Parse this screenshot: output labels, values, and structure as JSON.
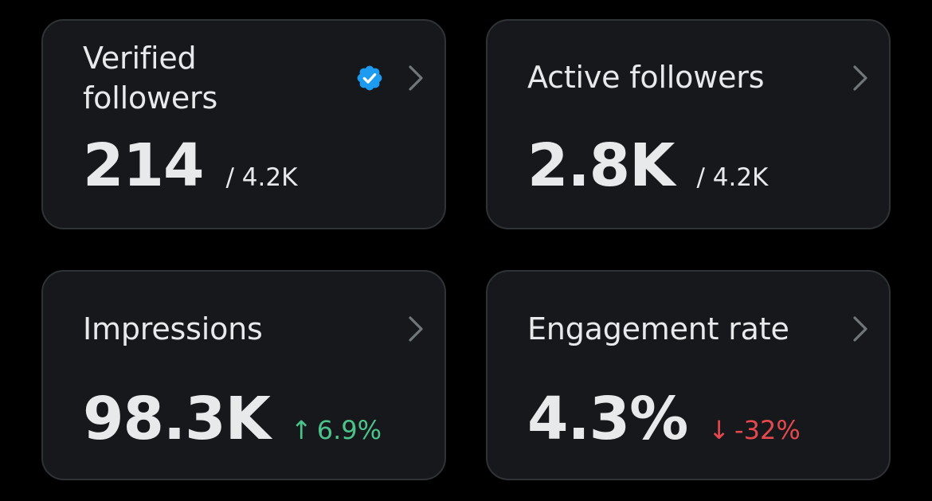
{
  "colors": {
    "background": "#000000",
    "card_background": "#16181c",
    "card_border": "#2f3336",
    "text_primary": "#e7e9ea",
    "chevron": "#71767b",
    "verified_badge": "#1d9bf0",
    "positive": "#4cc38a",
    "negative": "#e5484d"
  },
  "cards": [
    {
      "title": "Verified followers",
      "value": "214",
      "total": "/ 4.2K",
      "icon": "verified-badge-icon",
      "chevron_icon": "chevron-right-icon"
    },
    {
      "title": "Active followers",
      "value": "2.8K",
      "total": "/ 4.2K",
      "chevron_icon": "chevron-right-icon"
    },
    {
      "title": "Impressions",
      "value": "98.3K",
      "delta_arrow": "↑",
      "delta": "6.9%",
      "delta_direction": "up",
      "chevron_icon": "chevron-right-icon"
    },
    {
      "title": "Engagement rate",
      "value": "4.3%",
      "delta_arrow": "↓",
      "delta": "-32%",
      "delta_direction": "down",
      "chevron_icon": "chevron-right-icon"
    }
  ]
}
